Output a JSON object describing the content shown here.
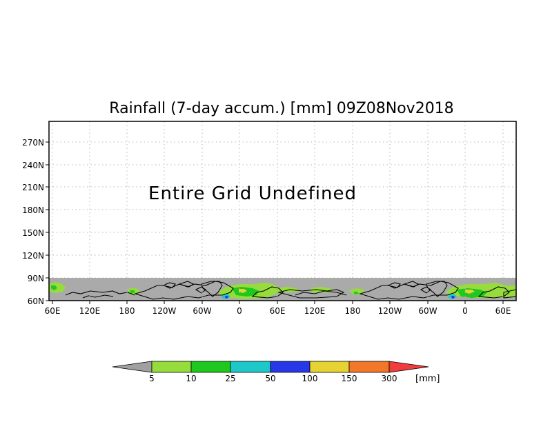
{
  "title": "Rainfall (7-day accum.) [mm] 09Z08Nov2018",
  "message": "Entire Grid Undefined",
  "lat_ticks": [
    "270N",
    "240N",
    "210N",
    "180N",
    "150N",
    "120N",
    "90N",
    "60N"
  ],
  "lon_ticks": [
    "60E",
    "120E",
    "180",
    "120W",
    "60W",
    "0",
    "60E",
    "120E",
    "180",
    "120W",
    "60W",
    "0",
    "60E"
  ],
  "colorbar": {
    "unit": "[mm]",
    "labels": [
      "5",
      "10",
      "25",
      "50",
      "100",
      "150",
      "300"
    ],
    "colors": [
      "#a0a0a0",
      "#96dc3c",
      "#1ec81e",
      "#1ec8c8",
      "#2838e6",
      "#e6d232",
      "#f07828",
      "#f03c3c"
    ]
  },
  "colors": {
    "land_mask": "#aaaaaa",
    "grid": "#b4b4b4",
    "coastline": "#000000"
  }
}
